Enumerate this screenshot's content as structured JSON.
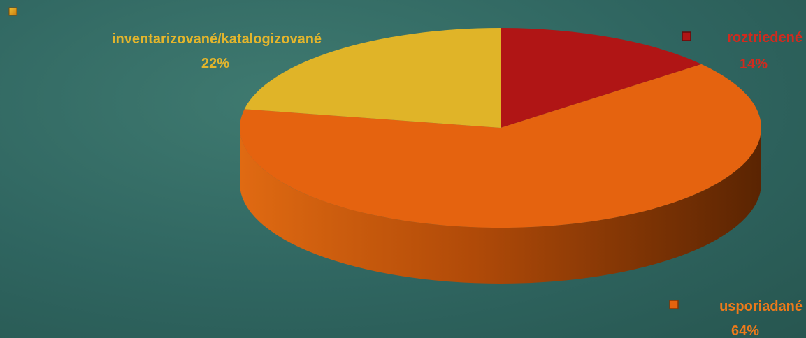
{
  "chart_data": {
    "type": "pie",
    "style": "3d",
    "series": [
      {
        "name": "",
        "slices": [
          {
            "label": "roztriedené",
            "value": 14,
            "percent_label": "14%",
            "color": "#b01515"
          },
          {
            "label": "usporiadané",
            "value": 64,
            "percent_label": "64%",
            "color": "#e5630f"
          },
          {
            "label": "inventarizované/katalogizované",
            "value": 22,
            "percent_label": "22%",
            "color": "#e0b428"
          }
        ]
      }
    ],
    "legend": "none",
    "data_labels": "category name and percent",
    "title": ""
  },
  "colors": {
    "background": "#2f6560",
    "label_red": "#d22a1e",
    "label_orange": "#ee7a1a",
    "label_yellow": "#e3b52c"
  }
}
